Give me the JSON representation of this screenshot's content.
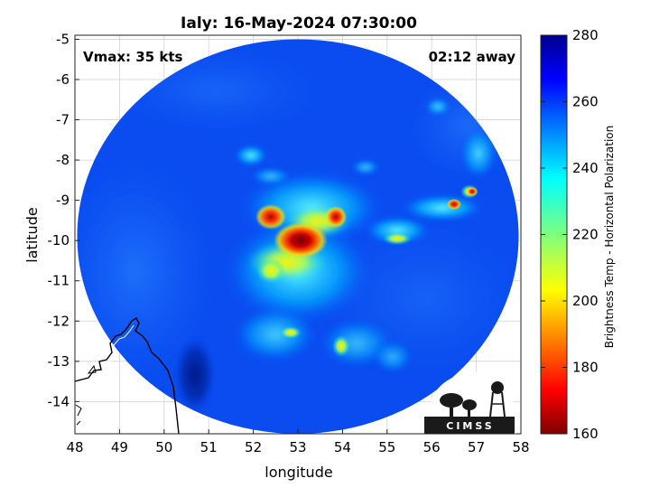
{
  "chart_data": {
    "type": "heatmap",
    "title": "Ialy: 16-May-2024 07:30:00",
    "xlabel": "longitude",
    "ylabel": "latitude",
    "xlim": [
      48,
      58
    ],
    "ylim": [
      -14.8,
      -4.9
    ],
    "xticks": [
      "48",
      "49",
      "50",
      "51",
      "52",
      "53",
      "54",
      "55",
      "56",
      "57",
      "58"
    ],
    "yticks": [
      "-5",
      "-6",
      "-7",
      "-8",
      "-9",
      "-10",
      "-11",
      "-12",
      "-13",
      "-14"
    ],
    "grid": true,
    "annotations": {
      "vmax": "Vmax: 35 kts",
      "time_offset": "02:12 away"
    },
    "colorbar": {
      "label": "Brightness Temp - Horizontal Polarization",
      "range": [
        160,
        280
      ],
      "ticks": [
        "160",
        "180",
        "200",
        "220",
        "240",
        "260",
        "280"
      ],
      "colormap": "jet"
    },
    "swath": {
      "center_lon": 53.0,
      "center_lat": -9.9,
      "radius_lon": 4.95,
      "radius_lat": 4.9
    },
    "features": [
      {
        "type": "cyclone-core",
        "lon": 53.0,
        "lat": -10.0,
        "temp": 168
      },
      {
        "type": "convective-band",
        "lon": 52.2,
        "lat": -9.6,
        "temp": 180
      },
      {
        "type": "convective-band",
        "lon": 53.8,
        "lat": -9.5,
        "temp": 178
      },
      {
        "type": "rain-band",
        "lon": 52.6,
        "lat": -10.9,
        "temp": 205
      },
      {
        "type": "rain-band",
        "lon": 56.3,
        "lat": -9.3,
        "temp": 195
      },
      {
        "type": "cold-surface",
        "lon": 50.6,
        "lat": -13.2,
        "temp": 270
      }
    ]
  },
  "logo": {
    "text": "CIMSS"
  }
}
